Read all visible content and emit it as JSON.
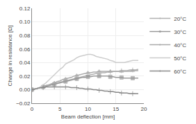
{
  "chart_data": {
    "type": "line",
    "xlabel": "Beam deflection [mm]",
    "ylabel": "Change in resistance [Ω]",
    "xlim": [
      0,
      20
    ],
    "ylim": [
      -0.02,
      0.12
    ],
    "xticks": [
      0,
      5,
      10,
      15,
      20
    ],
    "yticks": [
      {
        "value": -0.02,
        "label": "−0.02"
      },
      {
        "value": 0,
        "label": "0.00"
      },
      0.02,
      0.04,
      0.06,
      0.08,
      {
        "value": 0.1,
        "label": "0.10"
      },
      0.12
    ],
    "grid": true,
    "legend": "upper right",
    "x": [
      0,
      0.5,
      1,
      1.5,
      2,
      2.5,
      3,
      3.5,
      4,
      4.5,
      5,
      5.5,
      6,
      6.5,
      7,
      7.5,
      8,
      8.5,
      9,
      9.5,
      10,
      10.5,
      11,
      11.5,
      12,
      12.5,
      13,
      13.5,
      14,
      14.5,
      15,
      15.5,
      16,
      16.5,
      17,
      17.5,
      18,
      18.5,
      19
    ],
    "series": [
      {
        "name": "20°C",
        "color": "#b0b0b0",
        "marker": "plus",
        "values": [
          0.0,
          0.001,
          0.002,
          0.003,
          0.005,
          0.006,
          0.007,
          0.008,
          0.009,
          0.01,
          0.011,
          0.012,
          0.013,
          0.014,
          0.015,
          0.016,
          0.017,
          0.018,
          0.019,
          0.02,
          0.021,
          0.022,
          0.023,
          0.024,
          0.024,
          0.025,
          0.025,
          0.026,
          0.026,
          0.027,
          0.027,
          0.027,
          0.028,
          0.028,
          0.028,
          0.029,
          0.029,
          0.029,
          0.03
        ]
      },
      {
        "name": "30°C",
        "color": "#999999",
        "marker": "square",
        "values": [
          0.0,
          0.001,
          0.002,
          0.003,
          0.004,
          0.005,
          0.006,
          0.007,
          0.008,
          0.009,
          0.01,
          0.011,
          0.012,
          0.013,
          0.014,
          0.015,
          0.016,
          0.017,
          0.018,
          0.018,
          0.019,
          0.019,
          0.02,
          0.02,
          0.02,
          0.02,
          0.02,
          0.02,
          0.019,
          0.019,
          0.018,
          0.018,
          0.018,
          0.017,
          0.017,
          0.017,
          0.017,
          0.017,
          0.017
        ]
      },
      {
        "name": "40°C",
        "color": "#aaaaaa",
        "marker": "triangle-up",
        "values": [
          0.0,
          0.001,
          0.002,
          0.003,
          0.004,
          0.006,
          0.007,
          0.009,
          0.01,
          0.012,
          0.013,
          0.015,
          0.016,
          0.017,
          0.018,
          0.02,
          0.021,
          0.022,
          0.023,
          0.024,
          0.025,
          0.025,
          0.026,
          0.026,
          0.027,
          0.027,
          0.027,
          0.027,
          0.027,
          0.027,
          0.027,
          0.027,
          0.027,
          0.027,
          0.027,
          0.027,
          0.028,
          0.028,
          0.028
        ]
      },
      {
        "name": "50°C",
        "color": "#cccccc",
        "marker": "none",
        "values": [
          0.0,
          0.001,
          0.002,
          0.004,
          0.007,
          0.01,
          0.014,
          0.018,
          0.022,
          0.027,
          0.03,
          0.033,
          0.038,
          0.04,
          0.042,
          0.044,
          0.047,
          0.049,
          0.05,
          0.051,
          0.052,
          0.052,
          0.051,
          0.049,
          0.048,
          0.047,
          0.046,
          0.045,
          0.043,
          0.042,
          0.04,
          0.04,
          0.04,
          0.04,
          0.041,
          0.042,
          0.043,
          0.043,
          0.043
        ]
      },
      {
        "name": "60°C",
        "color": "#888888",
        "marker": "plus",
        "values": [
          0.0,
          0.001,
          0.002,
          0.003,
          0.003,
          0.004,
          0.004,
          0.004,
          0.004,
          0.004,
          0.004,
          0.004,
          0.004,
          0.004,
          0.003,
          0.003,
          0.003,
          0.002,
          0.002,
          0.001,
          0.001,
          0.001,
          0.0,
          0.0,
          -0.001,
          -0.001,
          -0.002,
          -0.002,
          -0.003,
          -0.003,
          -0.004,
          -0.004,
          -0.005,
          -0.005,
          -0.005,
          -0.006,
          -0.006,
          -0.006,
          -0.006
        ]
      }
    ]
  }
}
